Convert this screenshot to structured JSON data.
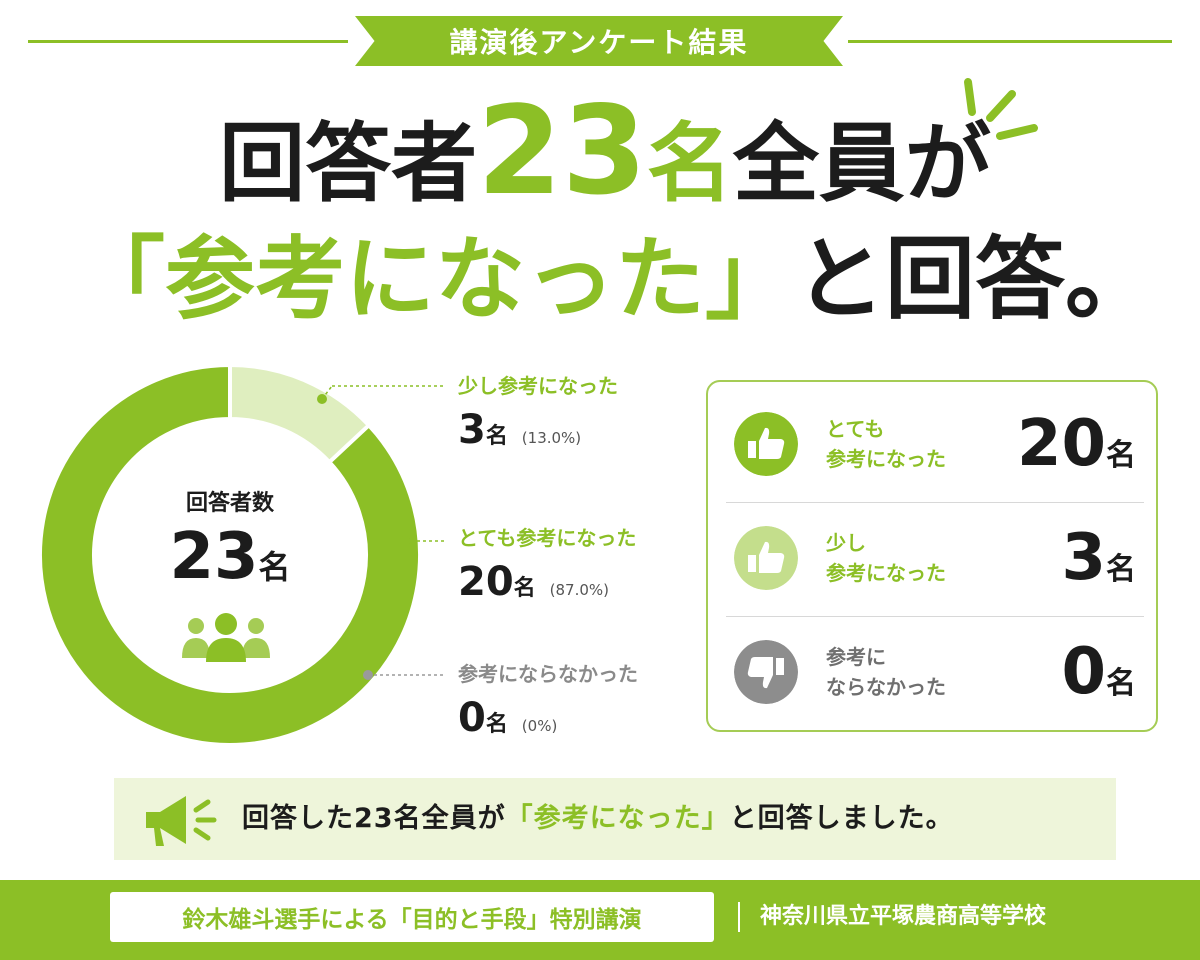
{
  "header": {
    "banner": "講演後アンケート結果"
  },
  "headline": {
    "line1": {
      "prefix": "回答者",
      "number": "23",
      "unit": "名",
      "suffix": "全員が"
    },
    "line2": {
      "quote_open": "「",
      "phrase": "参考になった",
      "quote_close": "」",
      "suffix": "と回答。"
    }
  },
  "donut": {
    "center_label": "回答者数",
    "center_value": "23",
    "center_unit": "名"
  },
  "chart_data": {
    "type": "pie",
    "total": 23,
    "categories": [
      "少し参考になった",
      "とても参考になった",
      "参考にならなかった"
    ],
    "values": [
      3,
      20,
      0
    ],
    "percent_labels": [
      "(13.0%)",
      "(87.0%)",
      "(0%)"
    ],
    "units": [
      "名",
      "名",
      "名"
    ],
    "colors": [
      "#dfeebf",
      "#8cbf26",
      "#9a9a9a"
    ]
  },
  "summary": {
    "rows": [
      {
        "label_lines": [
          "とても",
          "参考になった"
        ],
        "value": "20",
        "unit": "名",
        "icon": "thumbs-up-icon",
        "color": "#8cbf26"
      },
      {
        "label_lines": [
          "少し",
          "参考になった"
        ],
        "value": "3",
        "unit": "名",
        "icon": "thumbs-up-icon",
        "color": "#c4de8c"
      },
      {
        "label_lines": [
          "参考に",
          "ならなかった"
        ],
        "value": "0",
        "unit": "名",
        "icon": "thumbs-down-icon",
        "color": "#8d8d8d"
      }
    ]
  },
  "announcement": {
    "before": "回答した23名全員が",
    "highlight": "「参考になった」",
    "after": "と回答しました。"
  },
  "footer": {
    "event": "鈴木雄斗選手による「目的と手段」特別講演",
    "school": "神奈川県立平塚農商高等学校"
  }
}
